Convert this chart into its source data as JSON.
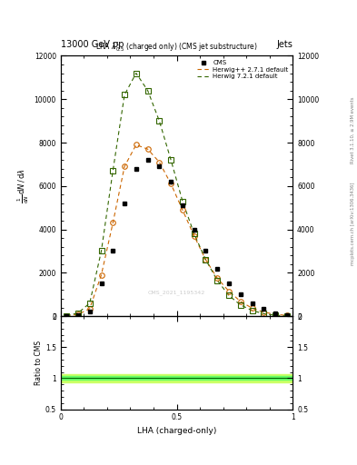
{
  "title_top_left": "13000 GeV pp",
  "title_top_right": "Jets",
  "plot_title": "LHA $\\lambda^{1}_{0.5}$ (charged only) (CMS jet substructure)",
  "xlabel": "LHA (charged-only)",
  "ylabel_ratio": "Ratio to CMS",
  "right_label1": "Rivet 3.1.10, ≥ 2.9M events",
  "right_label2": "mcplots.cern.ch [arXiv:1306.3436]",
  "watermark": "CMS_2021_1195342",
  "cms_x": [
    0.025,
    0.075,
    0.125,
    0.175,
    0.225,
    0.275,
    0.325,
    0.375,
    0.425,
    0.475,
    0.525,
    0.575,
    0.625,
    0.675,
    0.725,
    0.775,
    0.825,
    0.875,
    0.925,
    0.975
  ],
  "cms_y": [
    10,
    30,
    200,
    1500,
    3000,
    5200,
    6800,
    7200,
    6900,
    6200,
    5100,
    4000,
    3000,
    2200,
    1500,
    1000,
    600,
    350,
    150,
    50
  ],
  "herwig_pp_x": [
    0.025,
    0.075,
    0.125,
    0.175,
    0.225,
    0.275,
    0.325,
    0.375,
    0.425,
    0.475,
    0.525,
    0.575,
    0.625,
    0.675,
    0.725,
    0.775,
    0.825,
    0.875,
    0.925,
    0.975
  ],
  "herwig_pp_y": [
    15,
    80,
    350,
    1900,
    4300,
    6900,
    7900,
    7700,
    7100,
    6100,
    4900,
    3700,
    2600,
    1750,
    1150,
    680,
    370,
    190,
    85,
    35
  ],
  "herwig72_x": [
    0.025,
    0.075,
    0.125,
    0.175,
    0.225,
    0.275,
    0.325,
    0.375,
    0.425,
    0.475,
    0.525,
    0.575,
    0.625,
    0.675,
    0.725,
    0.775,
    0.825,
    0.875,
    0.925,
    0.975
  ],
  "herwig72_y": [
    20,
    150,
    600,
    3000,
    6700,
    10200,
    11200,
    10400,
    9000,
    7200,
    5300,
    3800,
    2600,
    1650,
    950,
    520,
    260,
    115,
    42,
    14
  ],
  "cms_color": "#000000",
  "herwig_pp_color": "#cc6600",
  "herwig72_color": "#336600",
  "ylim_main": [
    0,
    12000
  ],
  "ylim_ratio": [
    0.5,
    2.0
  ],
  "xlim": [
    0.0,
    1.0
  ],
  "yticks": [
    0,
    2000,
    4000,
    6000,
    8000,
    10000,
    12000
  ],
  "ratio_yticks": [
    0.5,
    1.0,
    1.5,
    2.0
  ],
  "ratio_line_color": "#006600",
  "ratio_band_color_inner": "#66ff66",
  "ratio_band_color_outer": "#ccff66"
}
